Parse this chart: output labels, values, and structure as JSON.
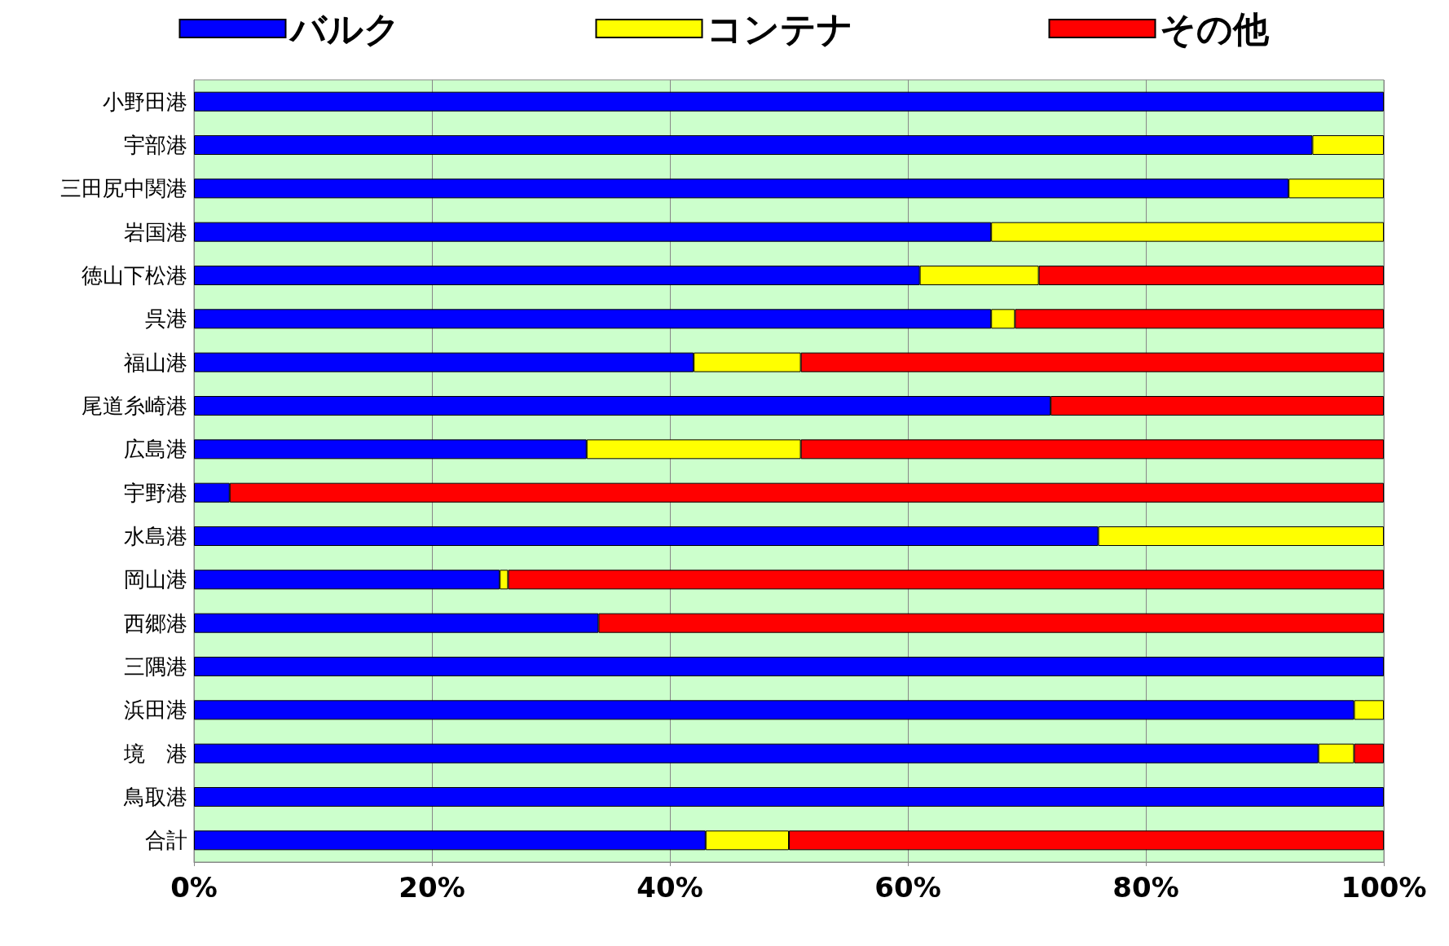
{
  "chart_data": {
    "type": "bar",
    "orientation": "horizontal",
    "stacked": true,
    "categories": [
      "小野田港",
      "宇部港",
      "三田尻中関港",
      "岩国港",
      "徳山下松港",
      "呉港",
      "福山港",
      "尾道糸崎港",
      "広島港",
      "宇野港",
      "水島港",
      "岡山港",
      "西郷港",
      "三隅港",
      "浜田港",
      "境　港",
      "鳥取港",
      "合計"
    ],
    "series": [
      {
        "name": "バルク",
        "color": "#0000ff",
        "values": [
          100,
          94,
          92,
          67,
          61,
          67,
          42,
          72,
          33,
          3,
          76,
          25.7,
          34,
          100,
          97.5,
          94.5,
          100,
          43
        ]
      },
      {
        "name": "コンテナ",
        "color": "#ffff00",
        "values": [
          0,
          6,
          8,
          33,
          10,
          2,
          9,
          0,
          18,
          0,
          24,
          0.7,
          0,
          0,
          2.5,
          3,
          0,
          7
        ]
      },
      {
        "name": "その他",
        "color": "#ff0000",
        "values": [
          0,
          0,
          0,
          0,
          29,
          31,
          49,
          28,
          49,
          97,
          0,
          73.6,
          66,
          0,
          0,
          2.5,
          0,
          50
        ]
      }
    ],
    "xlim": [
      0,
      100
    ],
    "xticks": [
      {
        "value": 0,
        "label": "0%"
      },
      {
        "value": 20,
        "label": "20%"
      },
      {
        "value": 40,
        "label": "40%"
      },
      {
        "value": 60,
        "label": "60%"
      },
      {
        "value": 80,
        "label": "80%"
      },
      {
        "value": 100,
        "label": "100%"
      }
    ],
    "grid": "x",
    "legend": "top"
  }
}
